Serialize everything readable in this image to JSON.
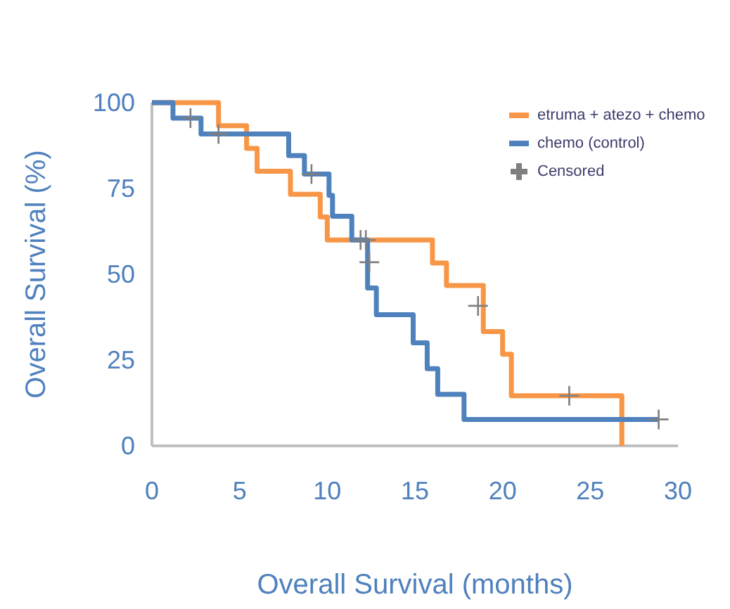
{
  "chart_data": {
    "type": "step",
    "xlabel": "Overall Survival (months)",
    "ylabel": "Overall Survival (%)",
    "xlim": [
      0,
      30
    ],
    "ylim": [
      0,
      100
    ],
    "xticks": [
      0,
      5,
      10,
      15,
      20,
      25,
      30
    ],
    "yticks": [
      0,
      25,
      50,
      75,
      100
    ],
    "grid": false,
    "legend": "top right",
    "line_style": "solid",
    "series": [
      {
        "name": "etruma + atezo + chemo",
        "color": "#f79646",
        "x": [
          0,
          3.8,
          5.4,
          6.0,
          7.9,
          9.6,
          10.0,
          16.0,
          16.8,
          18.9,
          20.0,
          20.5,
          26.8
        ],
        "values": [
          100,
          93.3,
          86.7,
          80,
          73.3,
          66.7,
          60,
          53.3,
          46.7,
          33.3,
          26.7,
          14.6,
          0
        ]
      },
      {
        "name": "chemo (control)",
        "color": "#4f81bd",
        "x": [
          0,
          1.2,
          2.8,
          7.8,
          8.7,
          10.1,
          10.3,
          11.4,
          12.3,
          12.8,
          14.9,
          15.7,
          16.3,
          17.8,
          28.9
        ],
        "values": [
          100,
          95.5,
          90.9,
          84.6,
          79.2,
          73,
          66.9,
          60,
          46,
          38.2,
          30,
          22.5,
          15,
          7.7,
          7.7
        ]
      },
      {
        "name": "Censored",
        "type": "scatter",
        "marker": "cross",
        "color": "#7f7f7f",
        "x": [
          2.2,
          3.8,
          9.1,
          12.4,
          28.9,
          11.9,
          12.2,
          18.6,
          23.8
        ],
        "values": [
          95.5,
          90.9,
          79.2,
          53.5,
          7.7,
          60,
          60,
          40.8,
          14.6
        ]
      }
    ]
  }
}
